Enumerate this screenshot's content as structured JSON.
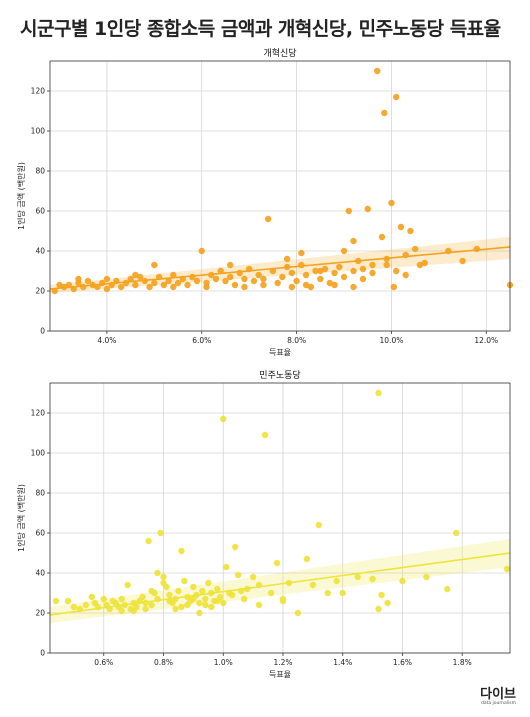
{
  "title": "시군구별 1인당 종합소득 금액과 개혁신당, 민주노동당 득표율",
  "logo": {
    "main": "다이브",
    "sub": "data journalism"
  },
  "chart_data": [
    {
      "type": "scatter",
      "title": "개혁신당",
      "xlabel": "득표율",
      "ylabel": "1인당 금액 (백만원)",
      "xlim": [
        2.8,
        12.5
      ],
      "ylim": [
        0,
        135
      ],
      "xticks": [
        4.0,
        6.0,
        8.0,
        10.0,
        12.0
      ],
      "xtick_labels": [
        "4.0%",
        "6.0%",
        "8.0%",
        "10.0%",
        "12.0%"
      ],
      "yticks": [
        0,
        20,
        40,
        60,
        80,
        100,
        120
      ],
      "ytick_labels": [
        "0",
        "20",
        "40",
        "60",
        "80",
        "100",
        "120"
      ],
      "grid": true,
      "color": "#f5a21e",
      "trend": {
        "x": [
          2.8,
          12.5
        ],
        "y": [
          21,
          42
        ],
        "band_lower": [
          19,
          36
        ],
        "band_upper": [
          23,
          47
        ]
      },
      "points": [
        [
          2.9,
          20
        ],
        [
          3.0,
          23
        ],
        [
          3.1,
          22
        ],
        [
          3.2,
          23
        ],
        [
          3.3,
          21
        ],
        [
          3.4,
          24
        ],
        [
          3.5,
          22
        ],
        [
          3.6,
          25
        ],
        [
          3.7,
          23
        ],
        [
          3.8,
          22
        ],
        [
          3.9,
          24
        ],
        [
          4.0,
          26
        ],
        [
          4.1,
          23
        ],
        [
          4.2,
          25
        ],
        [
          4.3,
          22
        ],
        [
          4.4,
          24
        ],
        [
          4.5,
          26
        ],
        [
          4.6,
          23
        ],
        [
          4.7,
          27
        ],
        [
          4.8,
          25
        ],
        [
          4.9,
          22
        ],
        [
          5.0,
          24
        ],
        [
          5.1,
          27
        ],
        [
          5.2,
          23
        ],
        [
          5.3,
          25
        ],
        [
          5.4,
          28
        ],
        [
          5.5,
          24
        ],
        [
          5.6,
          26
        ],
        [
          5.7,
          23
        ],
        [
          5.8,
          27
        ],
        [
          5.9,
          25
        ],
        [
          6.0,
          40
        ],
        [
          6.1,
          24
        ],
        [
          6.2,
          28
        ],
        [
          6.3,
          26
        ],
        [
          6.4,
          30
        ],
        [
          6.5,
          25
        ],
        [
          6.6,
          27
        ],
        [
          6.7,
          23
        ],
        [
          6.8,
          29
        ],
        [
          6.9,
          26
        ],
        [
          7.0,
          31
        ],
        [
          7.1,
          25
        ],
        [
          7.2,
          28
        ],
        [
          7.3,
          26
        ],
        [
          7.4,
          56
        ],
        [
          7.5,
          30
        ],
        [
          7.6,
          24
        ],
        [
          7.7,
          27
        ],
        [
          7.8,
          32
        ],
        [
          7.9,
          29
        ],
        [
          8.0,
          25
        ],
        [
          8.1,
          33
        ],
        [
          8.2,
          28
        ],
        [
          8.3,
          22
        ],
        [
          8.4,
          30
        ],
        [
          8.5,
          26
        ],
        [
          8.6,
          31
        ],
        [
          8.7,
          24
        ],
        [
          8.8,
          29
        ],
        [
          8.9,
          32
        ],
        [
          9.0,
          27
        ],
        [
          9.1,
          60
        ],
        [
          9.2,
          30
        ],
        [
          9.3,
          35
        ],
        [
          9.4,
          26
        ],
        [
          9.5,
          61
        ],
        [
          9.6,
          33
        ],
        [
          9.7,
          130
        ],
        [
          9.8,
          47
        ],
        [
          9.85,
          109
        ],
        [
          9.9,
          36
        ],
        [
          10.0,
          64
        ],
        [
          10.05,
          22
        ],
        [
          10.1,
          117
        ],
        [
          10.2,
          52
        ],
        [
          10.3,
          28
        ],
        [
          10.4,
          50
        ],
        [
          10.5,
          41
        ],
        [
          10.7,
          34
        ],
        [
          11.2,
          40
        ],
        [
          11.5,
          35
        ],
        [
          11.8,
          41
        ],
        [
          12.5,
          23
        ],
        [
          5.0,
          33
        ],
        [
          6.6,
          33
        ],
        [
          7.8,
          36
        ],
        [
          8.1,
          39
        ],
        [
          8.5,
          30
        ],
        [
          9.0,
          40
        ],
        [
          9.2,
          45
        ],
        [
          9.4,
          31
        ],
        [
          9.6,
          29
        ],
        [
          9.9,
          33
        ],
        [
          10.1,
          30
        ],
        [
          10.3,
          38
        ],
        [
          10.6,
          33
        ],
        [
          3.4,
          26
        ],
        [
          4.6,
          28
        ],
        [
          7.3,
          23
        ],
        [
          6.9,
          22
        ],
        [
          8.2,
          23
        ],
        [
          5.4,
          22
        ],
        [
          6.1,
          22
        ],
        [
          7.9,
          22
        ],
        [
          8.8,
          23
        ],
        [
          9.2,
          22
        ],
        [
          4.0,
          21
        ]
      ]
    },
    {
      "type": "scatter",
      "title": "민주노동당",
      "xlabel": "득표율",
      "ylabel": "1인당 금액 (백만원)",
      "xlim": [
        0.42,
        1.96
      ],
      "ylim": [
        0,
        135
      ],
      "xticks": [
        0.6,
        0.8,
        1.0,
        1.2,
        1.4,
        1.6,
        1.8
      ],
      "xtick_labels": [
        "0.6%",
        "0.8%",
        "1.0%",
        "1.2%",
        "1.4%",
        "1.6%",
        "1.8%"
      ],
      "yticks": [
        0,
        20,
        40,
        60,
        80,
        100,
        120
      ],
      "ytick_labels": [
        "0",
        "20",
        "40",
        "60",
        "80",
        "100",
        "120"
      ],
      "grid": true,
      "color": "#eee33a",
      "trend": {
        "x": [
          0.42,
          1.96
        ],
        "y": [
          19,
          50
        ],
        "band_lower": [
          15,
          43
        ],
        "band_upper": [
          23,
          57
        ]
      },
      "points": [
        [
          0.44,
          26
        ],
        [
          0.48,
          26
        ],
        [
          0.5,
          23
        ],
        [
          0.52,
          22
        ],
        [
          0.54,
          24
        ],
        [
          0.56,
          28
        ],
        [
          0.57,
          25
        ],
        [
          0.58,
          23
        ],
        [
          0.6,
          27
        ],
        [
          0.61,
          24
        ],
        [
          0.62,
          22
        ],
        [
          0.63,
          26
        ],
        [
          0.64,
          25
        ],
        [
          0.65,
          23
        ],
        [
          0.66,
          27
        ],
        [
          0.67,
          24
        ],
        [
          0.68,
          34
        ],
        [
          0.69,
          22
        ],
        [
          0.7,
          25
        ],
        [
          0.71,
          23
        ],
        [
          0.72,
          26
        ],
        [
          0.73,
          28
        ],
        [
          0.74,
          25
        ],
        [
          0.75,
          56
        ],
        [
          0.76,
          24
        ],
        [
          0.77,
          30
        ],
        [
          0.78,
          27
        ],
        [
          0.79,
          60
        ],
        [
          0.8,
          38
        ],
        [
          0.81,
          33
        ],
        [
          0.82,
          29
        ],
        [
          0.83,
          25
        ],
        [
          0.84,
          27
        ],
        [
          0.85,
          31
        ],
        [
          0.86,
          51
        ],
        [
          0.87,
          36
        ],
        [
          0.88,
          28
        ],
        [
          0.89,
          26
        ],
        [
          0.9,
          33
        ],
        [
          0.91,
          29
        ],
        [
          0.92,
          25
        ],
        [
          0.93,
          31
        ],
        [
          0.94,
          27
        ],
        [
          0.95,
          35
        ],
        [
          0.96,
          30
        ],
        [
          0.97,
          26
        ],
        [
          0.98,
          32
        ],
        [
          0.99,
          28
        ],
        [
          1.0,
          117
        ],
        [
          1.01,
          43
        ],
        [
          1.03,
          29
        ],
        [
          1.04,
          53
        ],
        [
          1.05,
          39
        ],
        [
          1.07,
          27
        ],
        [
          1.08,
          32
        ],
        [
          1.1,
          38
        ],
        [
          1.12,
          34
        ],
        [
          1.14,
          109
        ],
        [
          1.16,
          30
        ],
        [
          1.18,
          45
        ],
        [
          1.2,
          27
        ],
        [
          1.22,
          35
        ],
        [
          1.25,
          20
        ],
        [
          1.28,
          47
        ],
        [
          1.3,
          34
        ],
        [
          1.32,
          64
        ],
        [
          1.35,
          30
        ],
        [
          1.38,
          36
        ],
        [
          1.45,
          38
        ],
        [
          1.5,
          37
        ],
        [
          1.52,
          130
        ],
        [
          1.53,
          29
        ],
        [
          1.55,
          25
        ],
        [
          1.6,
          36
        ],
        [
          1.68,
          38
        ],
        [
          1.75,
          32
        ],
        [
          1.78,
          60
        ],
        [
          1.95,
          42
        ],
        [
          0.76,
          31
        ],
        [
          0.8,
          35
        ],
        [
          0.84,
          22
        ],
        [
          0.88,
          24
        ],
        [
          0.92,
          20
        ],
        [
          0.96,
          23
        ],
        [
          1.0,
          25
        ],
        [
          0.7,
          21
        ],
        [
          0.74,
          22
        ],
        [
          0.66,
          21
        ],
        [
          0.82,
          26
        ],
        [
          0.86,
          23
        ],
        [
          0.9,
          27
        ],
        [
          0.94,
          24
        ],
        [
          0.98,
          26
        ],
        [
          1.02,
          30
        ],
        [
          1.06,
          31
        ],
        [
          1.12,
          24
        ],
        [
          1.2,
          26
        ],
        [
          1.4,
          30
        ],
        [
          1.52,
          22
        ],
        [
          0.78,
          40
        ]
      ]
    }
  ]
}
